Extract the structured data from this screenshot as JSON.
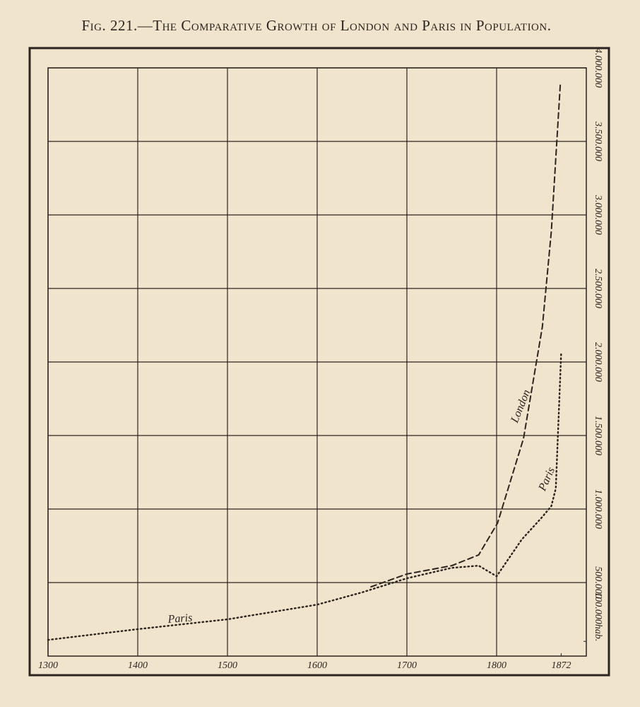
{
  "chart_data": {
    "type": "line",
    "title": "Fig. 221.—The Comparative Growth of London and Paris in Population.",
    "xlim": [
      1300,
      1900
    ],
    "xticks": [
      1300,
      1400,
      1500,
      1600,
      1700,
      1800,
      1872
    ],
    "ylim": [
      0,
      4000000
    ],
    "yticks": [
      {
        "value": 100000,
        "label": "100.000hab."
      },
      {
        "value": 500000,
        "label": "500.000"
      },
      {
        "value": 1000000,
        "label": "1.000.000"
      },
      {
        "value": 1500000,
        "label": "1.500.000"
      },
      {
        "value": 2000000,
        "label": "2.000.000"
      },
      {
        "value": 2500000,
        "label": "2.500.000"
      },
      {
        "value": 3000000,
        "label": "3.000.000"
      },
      {
        "value": 3500000,
        "label": "3.500.000"
      },
      {
        "value": 4000000,
        "label": "4.000.000"
      }
    ],
    "grid": true,
    "series": [
      {
        "name": "Paris",
        "color": "#2b2420",
        "style": "dotted",
        "x": [
          1300,
          1400,
          1500,
          1600,
          1650,
          1700,
          1750,
          1780,
          1800,
          1828,
          1850,
          1861,
          1866,
          1872
        ],
        "values": [
          110000,
          183000,
          250000,
          350000,
          433000,
          529000,
          600000,
          615000,
          543000,
          793000,
          940000,
          1020000,
          1140000,
          2060000
        ]
      },
      {
        "name": "London",
        "color": "#2b2420",
        "style": "dashed",
        "x": [
          1660,
          1700,
          1750,
          1780,
          1801,
          1830,
          1851,
          1861,
          1871
        ],
        "values": [
          471000,
          558000,
          615000,
          688000,
          904000,
          1480000,
          2240000,
          2890000,
          3890000
        ]
      }
    ],
    "annotations": [
      "Paris",
      "London",
      "Paris"
    ]
  }
}
